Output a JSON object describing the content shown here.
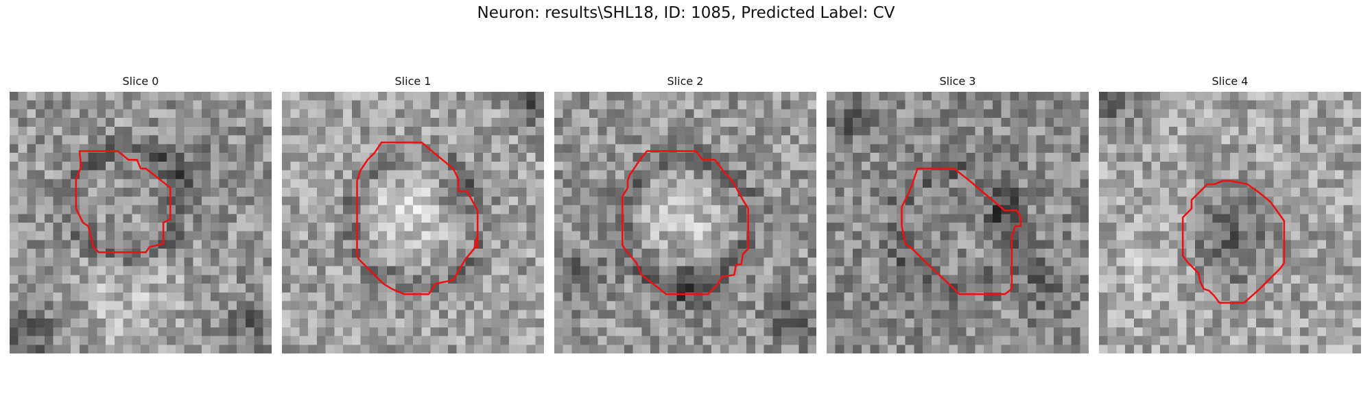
{
  "figure": {
    "title": "Neuron: results\\SHL18, ID: 1085, Predicted Label: CV"
  },
  "grid_size": 30,
  "contour_color": "#ee1111",
  "panels": [
    {
      "title": "Slice 0",
      "seed": 11,
      "base_gray": 150,
      "contour": [
        [
          8.0,
          6.8
        ],
        [
          9.4,
          6.8
        ],
        [
          11.4,
          6.8
        ],
        [
          12.4,
          6.8
        ],
        [
          13.6,
          7.8
        ],
        [
          14.6,
          7.8
        ],
        [
          15.0,
          8.8
        ],
        [
          15.6,
          8.8
        ],
        [
          18.4,
          11.0
        ],
        [
          18.4,
          14.6
        ],
        [
          17.6,
          15.0
        ],
        [
          17.6,
          17.4
        ],
        [
          16.0,
          17.8
        ],
        [
          15.6,
          18.4
        ],
        [
          10.2,
          18.4
        ],
        [
          9.6,
          17.8
        ],
        [
          9.0,
          15.4
        ],
        [
          8.4,
          15.0
        ],
        [
          7.6,
          13.4
        ],
        [
          7.6,
          10.0
        ],
        [
          8.2,
          8.6
        ]
      ],
      "blobs": [
        {
          "cx": 13.5,
          "cy": 12.5,
          "r": 6.2,
          "amp": -45,
          "ring": true
        },
        {
          "cx": 21.0,
          "cy": 8.0,
          "r": 4.0,
          "amp": -30,
          "ring": false
        },
        {
          "cx": 2.0,
          "cy": 28.0,
          "r": 3.5,
          "amp": -60,
          "ring": false
        },
        {
          "cx": 28.0,
          "cy": 27.0,
          "r": 3.0,
          "amp": -50,
          "ring": false
        },
        {
          "cx": 14.0,
          "cy": 24.0,
          "r": 6.0,
          "amp": 35,
          "ring": false
        }
      ]
    },
    {
      "title": "Slice 1",
      "seed": 23,
      "base_gray": 160,
      "contour": [
        [
          11.4,
          5.8
        ],
        [
          16.0,
          5.8
        ],
        [
          17.4,
          7.0
        ],
        [
          19.6,
          8.8
        ],
        [
          20.2,
          10.0
        ],
        [
          20.2,
          11.4
        ],
        [
          21.2,
          11.4
        ],
        [
          22.4,
          13.6
        ],
        [
          22.4,
          17.2
        ],
        [
          22.4,
          17.8
        ],
        [
          22.2,
          17.8
        ],
        [
          22.4,
          17.8
        ],
        [
          22.4,
          16.4
        ],
        [
          22.0,
          18.0
        ],
        [
          21.0,
          19.2
        ],
        [
          19.6,
          21.6
        ],
        [
          17.6,
          22.0
        ],
        [
          16.8,
          23.2
        ],
        [
          14.0,
          23.2
        ],
        [
          12.6,
          22.6
        ],
        [
          11.6,
          22.0
        ],
        [
          10.0,
          20.4
        ],
        [
          8.8,
          19.2
        ],
        [
          8.6,
          18.8
        ],
        [
          8.6,
          10.2
        ],
        [
          9.0,
          9.0
        ],
        [
          9.8,
          7.8
        ],
        [
          10.6,
          7.0
        ]
      ],
      "blobs": [
        {
          "cx": 15.5,
          "cy": 14.5,
          "r": 7.5,
          "amp": -40,
          "ring": true
        },
        {
          "cx": 15.0,
          "cy": 14.0,
          "r": 4.5,
          "amp": 45,
          "ring": false
        },
        {
          "cx": 28.5,
          "cy": 1.5,
          "r": 2.5,
          "amp": -70,
          "ring": false
        },
        {
          "cx": 20.0,
          "cy": 12.0,
          "r": 2.0,
          "amp": -60,
          "ring": false
        }
      ]
    },
    {
      "title": "Slice 2",
      "seed": 37,
      "base_gray": 150,
      "contour": [
        [
          10.6,
          6.8
        ],
        [
          16.2,
          6.8
        ],
        [
          17.0,
          7.8
        ],
        [
          18.4,
          7.8
        ],
        [
          19.6,
          9.4
        ],
        [
          20.2,
          10.0
        ],
        [
          20.6,
          10.6
        ],
        [
          21.6,
          12.4
        ],
        [
          22.2,
          13.4
        ],
        [
          22.2,
          18.0
        ],
        [
          21.6,
          18.6
        ],
        [
          21.4,
          19.8
        ],
        [
          20.8,
          19.8
        ],
        [
          20.6,
          21.0
        ],
        [
          19.2,
          21.2
        ],
        [
          18.6,
          22.2
        ],
        [
          17.6,
          23.2
        ],
        [
          15.6,
          23.2
        ],
        [
          12.8,
          23.2
        ],
        [
          11.8,
          22.4
        ],
        [
          10.0,
          21.0
        ],
        [
          9.4,
          19.6
        ],
        [
          8.2,
          18.2
        ],
        [
          7.8,
          17.6
        ],
        [
          7.8,
          13.8
        ],
        [
          7.8,
          12.0
        ],
        [
          8.4,
          11.0
        ],
        [
          8.4,
          10.2
        ],
        [
          8.6,
          9.6
        ],
        [
          9.8,
          7.8
        ]
      ],
      "blobs": [
        {
          "cx": 15.0,
          "cy": 15.0,
          "r": 7.5,
          "amp": -42,
          "ring": true
        },
        {
          "cx": 15.0,
          "cy": 15.0,
          "r": 4.5,
          "amp": 45,
          "ring": false
        },
        {
          "cx": 16.0,
          "cy": 22.5,
          "r": 3.0,
          "amp": -60,
          "ring": false
        },
        {
          "cx": 27.0,
          "cy": 26.0,
          "r": 3.0,
          "amp": -50,
          "ring": false
        },
        {
          "cx": 3.0,
          "cy": 21.0,
          "r": 3.0,
          "amp": -45,
          "ring": false
        }
      ]
    },
    {
      "title": "Slice 3",
      "seed": 53,
      "base_gray": 140,
      "contour": [
        [
          10.4,
          8.8
        ],
        [
          14.6,
          8.8
        ],
        [
          16.6,
          10.4
        ],
        [
          18.0,
          11.6
        ],
        [
          20.4,
          13.6
        ],
        [
          21.8,
          13.6
        ],
        [
          22.2,
          14.4
        ],
        [
          22.2,
          15.4
        ],
        [
          21.6,
          15.4
        ],
        [
          21.2,
          16.6
        ],
        [
          21.2,
          22.6
        ],
        [
          20.4,
          23.2
        ],
        [
          15.2,
          23.2
        ],
        [
          14.6,
          22.6
        ],
        [
          11.4,
          19.6
        ],
        [
          9.8,
          18.0
        ],
        [
          9.0,
          17.4
        ],
        [
          8.6,
          15.4
        ],
        [
          8.6,
          13.2
        ],
        [
          9.0,
          12.4
        ],
        [
          9.4,
          11.6
        ],
        [
          9.8,
          10.6
        ]
      ],
      "blobs": [
        {
          "cx": 15.0,
          "cy": 16.0,
          "r": 7.0,
          "amp": -35,
          "ring": true
        },
        {
          "cx": 20.0,
          "cy": 14.0,
          "r": 2.0,
          "amp": -65,
          "ring": false
        },
        {
          "cx": 3.0,
          "cy": 3.0,
          "r": 2.5,
          "amp": -55,
          "ring": false
        },
        {
          "cx": 25.0,
          "cy": 22.0,
          "r": 3.0,
          "amp": -40,
          "ring": false
        }
      ]
    },
    {
      "title": "Slice 4",
      "seed": 71,
      "base_gray": 165,
      "contour": [
        [
          12.4,
          10.6
        ],
        [
          13.2,
          10.6
        ],
        [
          13.2,
          10.6
        ],
        [
          14.2,
          10.2
        ],
        [
          15.0,
          10.2
        ],
        [
          17.0,
          10.6
        ],
        [
          18.4,
          11.6
        ],
        [
          19.6,
          12.6
        ],
        [
          20.2,
          13.4
        ],
        [
          21.2,
          14.8
        ],
        [
          21.2,
          19.6
        ],
        [
          20.8,
          20.2
        ],
        [
          19.2,
          21.8
        ],
        [
          18.4,
          22.6
        ],
        [
          16.6,
          24.2
        ],
        [
          13.8,
          24.2
        ],
        [
          13.2,
          23.4
        ],
        [
          12.6,
          22.8
        ],
        [
          12.0,
          22.6
        ],
        [
          11.6,
          21.8
        ],
        [
          11.4,
          20.8
        ],
        [
          10.2,
          19.6
        ],
        [
          9.6,
          18.8
        ],
        [
          9.6,
          14.4
        ],
        [
          10.6,
          13.4
        ],
        [
          10.6,
          12.4
        ],
        [
          11.4,
          11.6
        ]
      ],
      "blobs": [
        {
          "cx": 15.5,
          "cy": 17.0,
          "r": 5.5,
          "amp": -60,
          "ring": false
        },
        {
          "cx": 1.5,
          "cy": 1.5,
          "r": 2.5,
          "amp": -75,
          "ring": false
        },
        {
          "cx": 6.0,
          "cy": 20.0,
          "r": 5.0,
          "amp": 20,
          "ring": false
        }
      ]
    }
  ]
}
